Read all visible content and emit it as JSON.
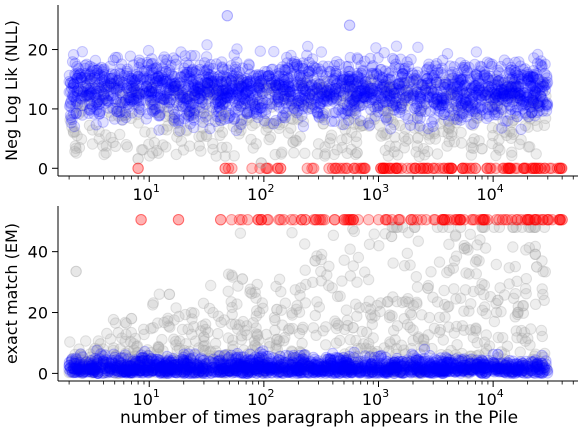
{
  "figure": {
    "xlabel": "number of times paragraph appears in the Pile"
  },
  "chart_data": [
    {
      "type": "scatter",
      "ylabel": "Neg Log Lik (NLL)",
      "xscale": "log",
      "xlim": [
        1.6,
        55000
      ],
      "ylim": [
        -1.3,
        27.5
      ],
      "x_ticks": [
        {
          "value": 10,
          "base": "10",
          "exp": "1"
        },
        {
          "value": 100,
          "base": "10",
          "exp": "2"
        },
        {
          "value": 1000,
          "base": "10",
          "exp": "3"
        },
        {
          "value": 10000,
          "base": "10",
          "exp": "4"
        }
      ],
      "y_ticks": [
        0,
        10,
        20
      ],
      "grid": false,
      "legend": "none",
      "series": [
        {
          "color": "#0000ff",
          "opacity": 0.16,
          "values": [
            {
              "x": 2.2,
              "y": 14.2
            },
            {
              "x": 3.1,
              "y": 12.6
            },
            {
              "x": 4.5,
              "y": 15.1
            },
            {
              "x": 6.8,
              "y": 11.9
            },
            {
              "x": 9.5,
              "y": 13.8
            },
            {
              "x": 14,
              "y": 16.3
            },
            {
              "x": 22,
              "y": 12.1
            },
            {
              "x": 35,
              "y": 14.7
            },
            {
              "x": 60,
              "y": 13.2
            },
            {
              "x": 110,
              "y": 15.6
            },
            {
              "x": 200,
              "y": 11.4
            },
            {
              "x": 400,
              "y": 14.9
            },
            {
              "x": 800,
              "y": 12.8
            },
            {
              "x": 1600,
              "y": 15.4
            },
            {
              "x": 3200,
              "y": 11.7
            },
            {
              "x": 6500,
              "y": 13.5
            },
            {
              "x": 12500,
              "y": 12.2
            },
            {
              "x": 25000,
              "y": 10.6
            },
            {
              "x": 48,
              "y": 25.7
            },
            {
              "x": 560,
              "y": 24.1
            }
          ]
        },
        {
          "color": "#a8a8a8",
          "opacity": 0.28,
          "values": [
            {
              "x": 8,
              "y": 1.6
            },
            {
              "x": 18,
              "y": 6.2
            },
            {
              "x": 45,
              "y": 8.9
            },
            {
              "x": 95,
              "y": 0.9
            },
            {
              "x": 180,
              "y": 4.4
            },
            {
              "x": 330,
              "y": 7.5
            },
            {
              "x": 650,
              "y": 2.6
            },
            {
              "x": 1200,
              "y": 9.4
            },
            {
              "x": 2200,
              "y": 5.1
            },
            {
              "x": 4100,
              "y": 6.8
            },
            {
              "x": 8000,
              "y": 3.3
            },
            {
              "x": 15000,
              "y": 8.1
            }
          ]
        },
        {
          "color": "#ff0000",
          "opacity": 0.3,
          "values": [
            {
              "x": 8,
              "y": 0
            },
            {
              "x": 46,
              "y": 0
            },
            {
              "x": 140,
              "y": 0
            },
            {
              "x": 420,
              "y": 0
            },
            {
              "x": 1100,
              "y": 0
            },
            {
              "x": 3000,
              "y": 0
            },
            {
              "x": 7000,
              "y": 0
            },
            {
              "x": 14000,
              "y": 0
            },
            {
              "x": 26000,
              "y": 0
            },
            {
              "x": 38000,
              "y": 0
            }
          ]
        }
      ]
    },
    {
      "type": "scatter",
      "ylabel": "exact match (EM)",
      "xscale": "log",
      "xlim": [
        1.6,
        55000
      ],
      "ylim": [
        -2.5,
        55
      ],
      "x_ticks": [
        {
          "value": 10,
          "base": "10",
          "exp": "1"
        },
        {
          "value": 100,
          "base": "10",
          "exp": "2"
        },
        {
          "value": 1000,
          "base": "10",
          "exp": "3"
        },
        {
          "value": 10000,
          "base": "10",
          "exp": "4"
        }
      ],
      "y_ticks": [
        0,
        20,
        40
      ],
      "grid": false,
      "legend": "none",
      "series": [
        {
          "color": "#0000ff",
          "opacity": 0.16,
          "values": [
            {
              "x": 2.2,
              "y": 1.5
            },
            {
              "x": 3.5,
              "y": 3.2
            },
            {
              "x": 6,
              "y": 0.6
            },
            {
              "x": 10,
              "y": 2.4
            },
            {
              "x": 20,
              "y": 4.1
            },
            {
              "x": 40,
              "y": 1.2
            },
            {
              "x": 90,
              "y": 3.6
            },
            {
              "x": 200,
              "y": 0.9
            },
            {
              "x": 450,
              "y": 5.0
            },
            {
              "x": 1000,
              "y": 2.0
            },
            {
              "x": 2200,
              "y": 4.4
            },
            {
              "x": 5000,
              "y": 1.7
            },
            {
              "x": 11000,
              "y": 6.2
            },
            {
              "x": 24000,
              "y": 2.9
            }
          ]
        },
        {
          "color": "#a8a8a8",
          "opacity": 0.28,
          "values": [
            {
              "x": 2.3,
              "y": 33.5
            },
            {
              "x": 7,
              "y": 18
            },
            {
              "x": 15,
              "y": 26
            },
            {
              "x": 30,
              "y": 12
            },
            {
              "x": 65,
              "y": 31
            },
            {
              "x": 130,
              "y": 21
            },
            {
              "x": 280,
              "y": 37
            },
            {
              "x": 600,
              "y": 15
            },
            {
              "x": 1300,
              "y": 45
            },
            {
              "x": 2700,
              "y": 28
            },
            {
              "x": 5600,
              "y": 41
            },
            {
              "x": 11000,
              "y": 24
            },
            {
              "x": 24000,
              "y": 35
            }
          ]
        },
        {
          "color": "#ff0000",
          "opacity": 0.3,
          "values": [
            {
              "x": 8.5,
              "y": 50.5
            },
            {
              "x": 18,
              "y": 50.5
            },
            {
              "x": 42,
              "y": 50.5
            },
            {
              "x": 95,
              "y": 50.5
            },
            {
              "x": 230,
              "y": 50.5
            },
            {
              "x": 600,
              "y": 50.5
            },
            {
              "x": 1500,
              "y": 50.5
            },
            {
              "x": 3600,
              "y": 50.5
            },
            {
              "x": 8500,
              "y": 50.5
            },
            {
              "x": 20000,
              "y": 50.5
            },
            {
              "x": 40000,
              "y": 50.5
            }
          ]
        }
      ]
    }
  ]
}
